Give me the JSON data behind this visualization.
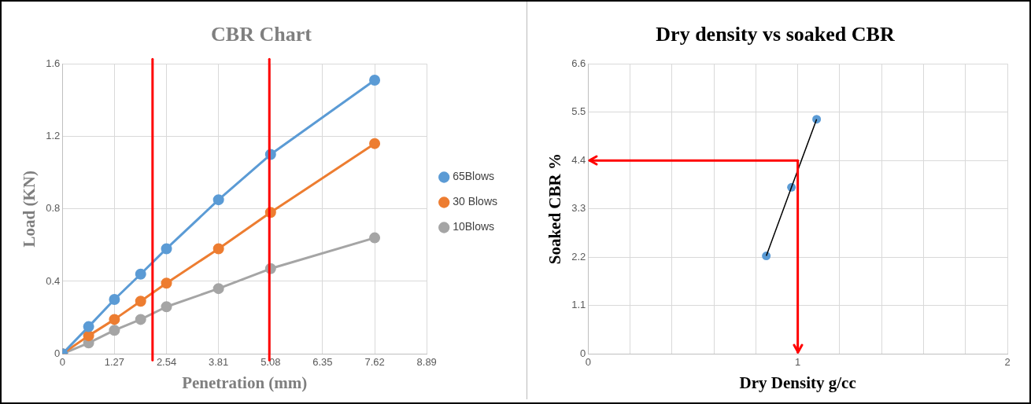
{
  "chart_data": [
    {
      "type": "line",
      "title": "CBR Chart",
      "xlabel": "Penetration (mm)",
      "ylabel": "Load (KN)",
      "x": [
        0,
        0.64,
        1.27,
        1.91,
        2.54,
        3.81,
        5.08,
        7.62
      ],
      "series": [
        {
          "name": "65Blows",
          "color": "#5b9bd5",
          "values": [
            0,
            0.15,
            0.3,
            0.44,
            0.58,
            0.85,
            1.1,
            1.51
          ]
        },
        {
          "name": "30 Blows",
          "color": "#ed7d31",
          "values": [
            0,
            0.1,
            0.19,
            0.29,
            0.39,
            0.58,
            0.78,
            1.16
          ]
        },
        {
          "name": "10Blows",
          "color": "#a5a5a5",
          "values": [
            0,
            0.06,
            0.13,
            0.19,
            0.26,
            0.36,
            0.47,
            0.64
          ]
        }
      ],
      "xlim": [
        0,
        8.89
      ],
      "xticks": [
        0,
        1.27,
        2.54,
        3.81,
        5.08,
        6.35,
        7.62,
        8.89
      ],
      "ylim": [
        0,
        1.6
      ],
      "yticks": [
        0,
        0.4,
        0.8,
        1.2,
        1.6
      ],
      "ref_lines": [
        {
          "axis": "x",
          "value": 2.2,
          "color": "#ff0000"
        },
        {
          "axis": "x",
          "value": 5.05,
          "color": "#ff0000"
        }
      ],
      "grid": true,
      "legend": "right",
      "marker": "circle"
    },
    {
      "type": "scatter",
      "title": "Dry density vs soaked CBR",
      "xlabel": "Dry Density g/cc",
      "ylabel": "Soaked CBR %",
      "series": [
        {
          "type": "line",
          "color": "#000000",
          "x": [
            0.85,
            0.97,
            1.09
          ],
          "values": [
            2.23,
            3.79,
            5.34
          ],
          "marker": "none"
        },
        {
          "type": "scatter",
          "color": "#5b9bd5",
          "x": [
            0.85,
            0.97,
            1.09
          ],
          "values": [
            2.23,
            3.79,
            5.34
          ],
          "marker": "circle"
        }
      ],
      "xlim": [
        0,
        2
      ],
      "xticks": [
        0,
        {
          "value": 0.2,
          "label": null
        },
        {
          "value": 0.4,
          "label": null
        },
        {
          "value": 0.6,
          "label": null
        },
        {
          "value": 0.8,
          "label": null
        },
        1,
        {
          "value": 1.2,
          "label": null
        },
        {
          "value": 1.4,
          "label": null
        },
        {
          "value": 1.6,
          "label": null
        },
        {
          "value": 1.8,
          "label": null
        },
        2
      ],
      "ylim": [
        0,
        6.6
      ],
      "yticks": [
        0,
        1.1,
        2.2,
        3.3,
        4.4,
        5.5,
        6.6
      ],
      "ref_lines": [
        {
          "axis": "y",
          "value": 4.4,
          "color": "#ff0000"
        },
        {
          "axis": "x",
          "value": 1,
          "color": "#ff0000"
        }
      ],
      "grid": true
    }
  ]
}
